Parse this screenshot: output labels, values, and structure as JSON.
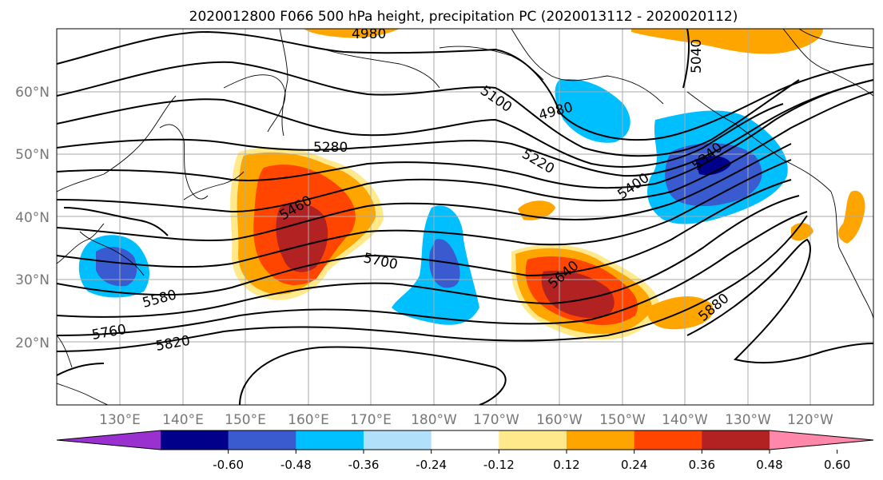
{
  "title": "2020012800 F066 500 hPa height, precipitation PC (2020013112 - 2020020112)",
  "lat_labels": [
    "60°N",
    "50°N",
    "40°N",
    "30°N",
    "20°N"
  ],
  "lon_labels": [
    "130°E",
    "140°E",
    "150°E",
    "160°E",
    "170°E",
    "180°W",
    "170°W",
    "160°W",
    "150°W",
    "140°W",
    "130°W",
    "120°W"
  ],
  "contour_labels": {
    "c4980": "4980",
    "c5100": "5100",
    "c5220": "5220",
    "c5280": "5280",
    "c5340": "5340",
    "c5400": "5400",
    "c5460": "5460",
    "c5580": "5580",
    "c5640": "5640",
    "c5700": "5700",
    "c5760": "5760",
    "c5820": "5820",
    "c5880": "5880",
    "c5040": "5040",
    "c4980top": "4980",
    "c5580b": "5580"
  },
  "colorbar": {
    "colors": [
      "#9b30d0",
      "#00008b",
      "#3a5bd0",
      "#00bfff",
      "#b0e0fa",
      "#ffffff",
      "#ffe98a",
      "#ffa500",
      "#ff4500",
      "#b22222",
      "#ff88aa"
    ],
    "ticks": [
      "-0.60",
      "-0.48",
      "-0.36",
      "-0.24",
      "-0.12",
      "0.12",
      "0.24",
      "0.36",
      "0.48",
      "0.60"
    ]
  },
  "fill_colors": {
    "pos_light": "#ffe98a",
    "pos_1": "#ffa500",
    "pos_2": "#ff4500",
    "pos_3": "#b22222",
    "neg_light": "#b0e0fa",
    "neg_1": "#00bfff",
    "neg_2": "#3a5bd0",
    "neg_3": "#00008b"
  }
}
